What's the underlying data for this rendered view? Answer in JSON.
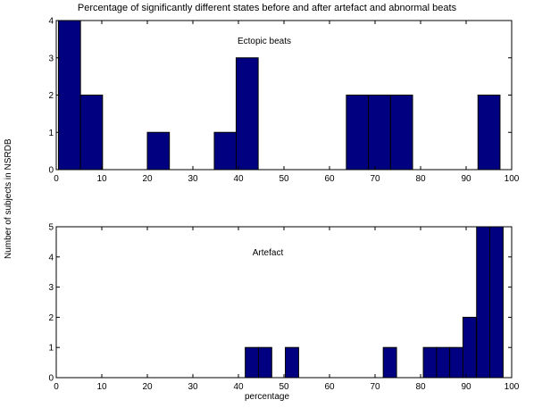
{
  "figure_title": "Percentage of significantly different states before and after artefact and abnormal beats",
  "ylabel": "Number of subjects in NSRDB",
  "xlabel": "percentage",
  "colors": {
    "bar_fill": "#000080",
    "bar_edge": "#000000",
    "axes": "#000000"
  },
  "chart_data": [
    {
      "type": "bar",
      "annotation": "Ectopic beats",
      "xlim": [
        0,
        100
      ],
      "ylim": [
        0,
        4
      ],
      "xticks": [
        0,
        10,
        20,
        30,
        40,
        50,
        60,
        70,
        80,
        90,
        100
      ],
      "yticks": [
        0,
        1,
        2,
        3,
        4
      ],
      "bin_width": 4.84,
      "bins": [
        {
          "x": 0.48,
          "value": 4
        },
        {
          "x": 5.32,
          "value": 2
        },
        {
          "x": 20.0,
          "value": 1
        },
        {
          "x": 34.7,
          "value": 1
        },
        {
          "x": 39.5,
          "value": 3
        },
        {
          "x": 63.7,
          "value": 2
        },
        {
          "x": 68.55,
          "value": 2
        },
        {
          "x": 73.4,
          "value": 2
        },
        {
          "x": 92.6,
          "value": 2
        }
      ]
    },
    {
      "type": "bar",
      "annotation": "Artefact",
      "xlim": [
        0,
        100
      ],
      "ylim": [
        0,
        5
      ],
      "xticks": [
        0,
        10,
        20,
        30,
        40,
        50,
        60,
        70,
        80,
        90,
        100
      ],
      "yticks": [
        0,
        1,
        2,
        3,
        4,
        5
      ],
      "bin_width": 2.92,
      "bins": [
        {
          "x": 41.5,
          "value": 1
        },
        {
          "x": 44.4,
          "value": 1
        },
        {
          "x": 50.3,
          "value": 1
        },
        {
          "x": 71.8,
          "value": 1
        },
        {
          "x": 80.6,
          "value": 1
        },
        {
          "x": 83.5,
          "value": 1
        },
        {
          "x": 86.4,
          "value": 1
        },
        {
          "x": 89.3,
          "value": 2
        },
        {
          "x": 92.3,
          "value": 5
        },
        {
          "x": 95.2,
          "value": 5
        }
      ]
    }
  ]
}
